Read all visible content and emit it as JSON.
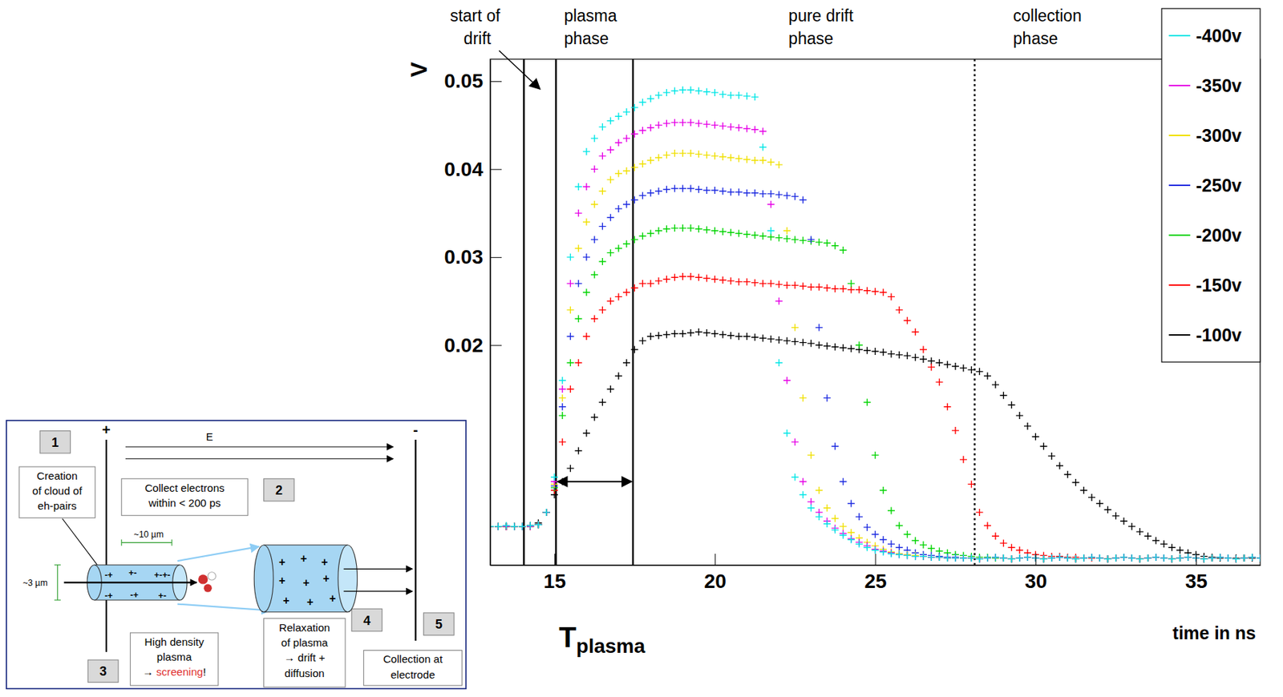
{
  "chart_data": {
    "type": "scatter",
    "marker": "plus",
    "x_label": "time in ns",
    "y_label": "V",
    "xlim": [
      13,
      37
    ],
    "ylim": [
      -0.005,
      0.0525
    ],
    "xticks": [
      15,
      20,
      25,
      30,
      35
    ],
    "yticks": [
      0.02,
      0.03,
      0.04,
      0.05
    ],
    "legend": "upper right",
    "x": [
      13,
      13.25,
      13.5,
      13.75,
      14,
      14.25,
      14.5,
      14.75,
      15,
      15.25,
      15.5,
      15.75,
      16,
      16.25,
      16.5,
      16.75,
      17,
      17.25,
      17.5,
      17.75,
      18,
      18.25,
      18.5,
      18.75,
      19,
      19.25,
      19.5,
      19.75,
      20,
      20.25,
      20.5,
      20.75,
      21,
      21.25,
      21.5,
      21.75,
      22,
      22.25,
      22.5,
      22.75,
      23,
      23.25,
      23.5,
      23.75,
      24,
      24.25,
      24.5,
      24.75,
      25,
      25.25,
      25.5,
      25.75,
      26,
      26.25,
      26.5,
      26.75,
      27,
      27.25,
      27.5,
      27.75,
      28,
      28.25,
      28.5,
      28.75,
      29,
      29.25,
      29.5,
      29.75,
      30,
      30.25,
      30.5,
      30.75,
      31,
      31.25,
      31.5,
      31.75,
      32,
      32.25,
      32.5,
      32.75,
      33,
      33.25,
      33.5,
      33.75,
      34,
      34.25,
      34.5,
      34.75,
      35,
      35.25,
      35.5,
      35.75,
      36,
      36.25,
      36.5,
      36.75,
      37
    ],
    "series": [
      {
        "name": "-400v",
        "color": "#00e6e6",
        "values": [
          -0.0006,
          -0.0006,
          -0.0005,
          -0.0006,
          -0.0006,
          -0.0005,
          -0.0004,
          0.001,
          0.005,
          0.016,
          0.03,
          0.038,
          0.042,
          0.0435,
          0.0448,
          0.0455,
          0.046,
          0.0465,
          0.047,
          0.0476,
          0.048,
          0.0484,
          0.0487,
          0.0489,
          0.049,
          0.049,
          0.0489,
          0.0488,
          0.0487,
          0.0485,
          0.0484,
          0.0484,
          0.0483,
          0.0482,
          0.0425,
          0.033,
          0.018,
          0.01,
          0.005,
          0.003,
          0.0015,
          0.0005,
          -0.0003,
          -0.001,
          -0.0016,
          -0.0021,
          -0.0026,
          -0.003,
          -0.0033,
          -0.0035,
          -0.0037,
          -0.0038,
          -0.0039,
          -0.004,
          -0.004,
          -0.0041,
          -0.0041,
          -0.0042,
          -0.0042,
          -0.0042,
          -0.0042,
          -0.0043,
          -0.0042,
          -0.0041,
          -0.0042,
          -0.0043,
          -0.0042,
          -0.0041,
          -0.0042,
          -0.0043,
          -0.0042,
          -0.0041,
          -0.0042,
          -0.0043,
          -0.0042,
          -0.0041,
          -0.0042,
          -0.0043,
          -0.0042,
          -0.0041,
          -0.0042,
          -0.0043,
          -0.0042,
          -0.0041,
          -0.0042,
          -0.0043,
          -0.0042,
          -0.0041,
          -0.0042,
          -0.0043,
          -0.0042,
          -0.0041,
          -0.0042,
          -0.0043,
          -0.0042,
          -0.0041,
          -0.0042
        ]
      },
      {
        "name": "-350v",
        "color": "#e600e6",
        "values": [
          -0.0006,
          -0.0006,
          -0.0006,
          -0.0006,
          -0.0006,
          -0.0006,
          -0.0004,
          0.001,
          0.0045,
          0.015,
          0.027,
          0.035,
          0.038,
          0.04,
          0.0415,
          0.0422,
          0.043,
          0.0435,
          0.044,
          0.0444,
          0.0447,
          0.045,
          0.0452,
          0.0453,
          0.0453,
          0.0453,
          0.0452,
          0.0451,
          0.045,
          0.0449,
          0.0448,
          0.0447,
          0.0446,
          0.0445,
          0.0443,
          0.036,
          0.025,
          0.016,
          0.009,
          0.0045,
          0.0022,
          0.001,
          0,
          -0.0008,
          -0.0014,
          -0.002,
          -0.0024,
          -0.0028,
          -0.0032,
          -0.0034,
          -0.0036,
          -0.0038,
          -0.0039,
          -0.004,
          -0.004,
          -0.0041,
          -0.0041,
          -0.0042,
          -0.0042,
          -0.0042,
          -0.0042,
          -0.0043,
          -0.0042,
          -0.0041,
          -0.0042,
          -0.0043,
          -0.0042,
          -0.0041,
          -0.0042,
          -0.0043,
          -0.0042,
          -0.0041,
          -0.0042,
          -0.0043,
          -0.0042,
          -0.0041,
          -0.0042,
          -0.0043,
          -0.0042,
          -0.0041,
          -0.0042,
          -0.0043,
          -0.0042,
          -0.0041,
          -0.0042,
          -0.0043,
          -0.0042,
          -0.0041,
          -0.0042,
          -0.0043,
          -0.0042,
          -0.0041,
          -0.0042,
          -0.0043,
          -0.0042,
          -0.0041,
          -0.0042
        ]
      },
      {
        "name": "-300v",
        "color": "#f0e000",
        "values": [
          -0.0006,
          -0.0006,
          -0.0006,
          -0.0006,
          -0.0006,
          -0.0006,
          -0.0004,
          0.001,
          0.0042,
          0.014,
          0.024,
          0.031,
          0.034,
          0.036,
          0.0375,
          0.0388,
          0.0395,
          0.0398,
          0.0402,
          0.0406,
          0.041,
          0.0413,
          0.0416,
          0.0418,
          0.0418,
          0.0418,
          0.0417,
          0.0416,
          0.0415,
          0.0414,
          0.0413,
          0.0412,
          0.0411,
          0.041,
          0.041,
          0.0408,
          0.0405,
          0.033,
          0.022,
          0.014,
          0.0075,
          0.0035,
          0.0015,
          0.0003,
          -0.0006,
          -0.0013,
          -0.0019,
          -0.0024,
          -0.0028,
          -0.0032,
          -0.0035,
          -0.0037,
          -0.0038,
          -0.0039,
          -0.004,
          -0.0041,
          -0.0041,
          -0.0042,
          -0.0042,
          -0.0042,
          -0.0042,
          -0.0043,
          -0.0042,
          -0.0041,
          -0.0042,
          -0.0043,
          -0.0042,
          -0.0041,
          -0.0042,
          -0.0043,
          -0.0042,
          -0.0041,
          -0.0042,
          -0.0043,
          -0.0042,
          -0.0041,
          -0.0042,
          -0.0043,
          -0.0042,
          -0.0041,
          -0.0042,
          -0.0043,
          -0.0042,
          -0.0041,
          -0.0042,
          -0.0043,
          -0.0042,
          -0.0041,
          -0.0042,
          -0.0043,
          -0.0042,
          -0.0041,
          -0.0042,
          -0.0043,
          -0.0042,
          -0.0041,
          -0.0042
        ]
      },
      {
        "name": "-250v",
        "color": "#1c2ae0",
        "values": [
          -0.0006,
          -0.0006,
          -0.0006,
          -0.0006,
          -0.0006,
          -0.0006,
          -0.0004,
          0.001,
          0.004,
          0.013,
          0.021,
          0.027,
          0.03,
          0.032,
          0.0335,
          0.0345,
          0.0355,
          0.036,
          0.0365,
          0.037,
          0.0373,
          0.0375,
          0.0377,
          0.0378,
          0.0378,
          0.0378,
          0.0377,
          0.0376,
          0.0376,
          0.0375,
          0.0374,
          0.0374,
          0.0373,
          0.0373,
          0.0372,
          0.0372,
          0.0371,
          0.037,
          0.0369,
          0.0365,
          0.032,
          0.022,
          0.014,
          0.0085,
          0.0045,
          0.002,
          0.0005,
          -0.0007,
          -0.0015,
          -0.0021,
          -0.0026,
          -0.003,
          -0.0033,
          -0.0036,
          -0.0038,
          -0.0039,
          -0.004,
          -0.0041,
          -0.0041,
          -0.0042,
          -0.0042,
          -0.0043,
          -0.0042,
          -0.0041,
          -0.0042,
          -0.0043,
          -0.0042,
          -0.0041,
          -0.0042,
          -0.0043,
          -0.0042,
          -0.0041,
          -0.0042,
          -0.0043,
          -0.0042,
          -0.0041,
          -0.0042,
          -0.0043,
          -0.0042,
          -0.0041,
          -0.0042,
          -0.0043,
          -0.0042,
          -0.0041,
          -0.0042,
          -0.0043,
          -0.0042,
          -0.0041,
          -0.0042,
          -0.0043,
          -0.0042,
          -0.0041,
          -0.0042,
          -0.0043,
          -0.0042,
          -0.0041,
          -0.0042
        ]
      },
      {
        "name": "-200v",
        "color": "#00d400",
        "values": [
          -0.0006,
          -0.0006,
          -0.0006,
          -0.0006,
          -0.0006,
          -0.0006,
          -0.0004,
          0.001,
          0.0038,
          0.012,
          0.018,
          0.023,
          0.026,
          0.028,
          0.0295,
          0.0305,
          0.031,
          0.0315,
          0.032,
          0.0324,
          0.0327,
          0.033,
          0.0332,
          0.0333,
          0.0333,
          0.0333,
          0.0332,
          0.0331,
          0.033,
          0.0329,
          0.0328,
          0.0327,
          0.0326,
          0.0325,
          0.0324,
          0.0323,
          0.0322,
          0.0321,
          0.032,
          0.0319,
          0.0318,
          0.0317,
          0.0316,
          0.0313,
          0.0308,
          0.027,
          0.02,
          0.0135,
          0.0075,
          0.0035,
          0.0012,
          -0.0005,
          -0.0015,
          -0.0022,
          -0.0027,
          -0.0031,
          -0.0034,
          -0.0036,
          -0.0038,
          -0.0039,
          -0.004,
          -0.0041,
          -0.0041,
          -0.0042,
          -0.0042,
          -0.0043,
          -0.0042,
          -0.0041,
          -0.0042,
          -0.0043,
          -0.0042,
          -0.0041,
          -0.0042,
          -0.0043,
          -0.0042,
          -0.0041,
          -0.0042,
          -0.0043,
          -0.0042,
          -0.0041,
          -0.0042,
          -0.0043,
          -0.0042,
          -0.0041,
          -0.0042,
          -0.0043,
          -0.0042,
          -0.0041,
          -0.0042,
          -0.0043,
          -0.0042,
          -0.0041,
          -0.0042,
          -0.0043,
          -0.0042,
          -0.0041,
          -0.0042
        ]
      },
      {
        "name": "-150v",
        "color": "#ff0000",
        "values": [
          -0.0006,
          -0.0006,
          -0.0006,
          -0.0006,
          -0.0006,
          -0.0006,
          -0.0004,
          0.001,
          0.0035,
          0.009,
          0.015,
          0.018,
          0.021,
          0.023,
          0.024,
          0.025,
          0.0255,
          0.026,
          0.0265,
          0.027,
          0.027,
          0.0273,
          0.0275,
          0.0277,
          0.0278,
          0.0278,
          0.0277,
          0.0276,
          0.0275,
          0.0274,
          0.0273,
          0.0272,
          0.0272,
          0.0271,
          0.027,
          0.027,
          0.0269,
          0.0268,
          0.0268,
          0.0267,
          0.0266,
          0.0266,
          0.0265,
          0.0264,
          0.0264,
          0.0263,
          0.0263,
          0.0262,
          0.0261,
          0.026,
          0.0255,
          0.024,
          0.0228,
          0.0215,
          0.0195,
          0.0175,
          0.0158,
          0.013,
          0.0103,
          0.007,
          0.0042,
          0.001,
          -0.0005,
          -0.0017,
          -0.0025,
          -0.003,
          -0.0033,
          -0.0036,
          -0.0038,
          -0.0039,
          -0.004,
          -0.004,
          -0.0041,
          -0.0041,
          -0.0042,
          -0.0042,
          -0.0042,
          -0.0043,
          -0.0042,
          -0.0041,
          -0.0042,
          -0.0043,
          -0.0042,
          -0.0041,
          -0.0042,
          -0.0043,
          -0.0042,
          -0.0041,
          -0.0042,
          -0.0043,
          -0.0042,
          -0.0041,
          -0.0042,
          -0.0043,
          -0.0042,
          -0.0041,
          -0.0042
        ]
      },
      {
        "name": "-100v",
        "color": "#000000",
        "values": [
          -0.0006,
          -0.0006,
          -0.0006,
          -0.0006,
          -0.0006,
          -0.0005,
          -0.0002,
          0.001,
          0.003,
          0.0045,
          0.006,
          0.008,
          0.01,
          0.0118,
          0.0135,
          0.015,
          0.0165,
          0.018,
          0.0195,
          0.0205,
          0.021,
          0.0211,
          0.0212,
          0.0213,
          0.0213,
          0.0214,
          0.0215,
          0.0214,
          0.0213,
          0.0212,
          0.0211,
          0.021,
          0.021,
          0.0209,
          0.0208,
          0.0207,
          0.0206,
          0.0205,
          0.0204,
          0.0203,
          0.0202,
          0.02,
          0.0199,
          0.0198,
          0.0197,
          0.0196,
          0.0195,
          0.0194,
          0.0193,
          0.0192,
          0.019,
          0.0189,
          0.0188,
          0.0186,
          0.0184,
          0.0182,
          0.018,
          0.0178,
          0.0176,
          0.0174,
          0.0172,
          0.017,
          0.0165,
          0.0155,
          0.0143,
          0.0132,
          0.012,
          0.0108,
          0.0096,
          0.0085,
          0.0074,
          0.0063,
          0.0053,
          0.0044,
          0.0035,
          0.0027,
          0.002,
          0.0013,
          0.0006,
          0,
          -0.0006,
          -0.0012,
          -0.0017,
          -0.0022,
          -0.0026,
          -0.003,
          -0.0033,
          -0.0036,
          -0.0038,
          -0.004,
          -0.0041,
          -0.0042,
          -0.0042,
          -0.0042,
          -0.0042,
          -0.0042,
          -0.0042
        ]
      }
    ],
    "vlines": [
      {
        "x": 14.05
      },
      {
        "x": 15.05
      },
      {
        "x": 17.45
      },
      {
        "x": 28.1,
        "line_style": "dotted"
      }
    ],
    "annotations": [
      {
        "text": "start of drift",
        "x": 12.6,
        "arrow": true
      },
      {
        "text": "plasma phase",
        "x": 15.3
      },
      {
        "text": "pure drift phase",
        "x": 22.3
      },
      {
        "text": "collection phase",
        "x": 29.3
      }
    ],
    "t_label": {
      "text": "T",
      "subscript": "plasma"
    }
  },
  "inset": {
    "electrode_plus": "+",
    "electrode_minus": "-",
    "field": "E",
    "steps": [
      "1",
      "2",
      "3",
      "4",
      "5"
    ],
    "notes": [
      {
        "lines": [
          "Creation",
          "of cloud of",
          "eh-pairs"
        ]
      },
      {
        "lines": [
          "Collect electrons",
          "within < 200 ps"
        ]
      },
      {
        "lines": [
          "High density",
          "plasma"
        ],
        "tail": "→ ",
        "highlight": "screening",
        "end": "!"
      },
      {
        "lines": [
          "Relaxation",
          "of plasma",
          "→ drift +",
          "diffusion"
        ]
      },
      {
        "lines": [
          "Collection at",
          "electrode"
        ]
      }
    ],
    "length": "~10 µm",
    "width": "~3 µm",
    "charges_cloud": [
      "-+",
      "+-",
      "+-+-",
      "-+",
      "-+",
      "+-"
    ],
    "charges_plasma": [
      "+",
      "+",
      "+",
      "+",
      "+",
      "+",
      "+",
      "+",
      "+"
    ]
  }
}
